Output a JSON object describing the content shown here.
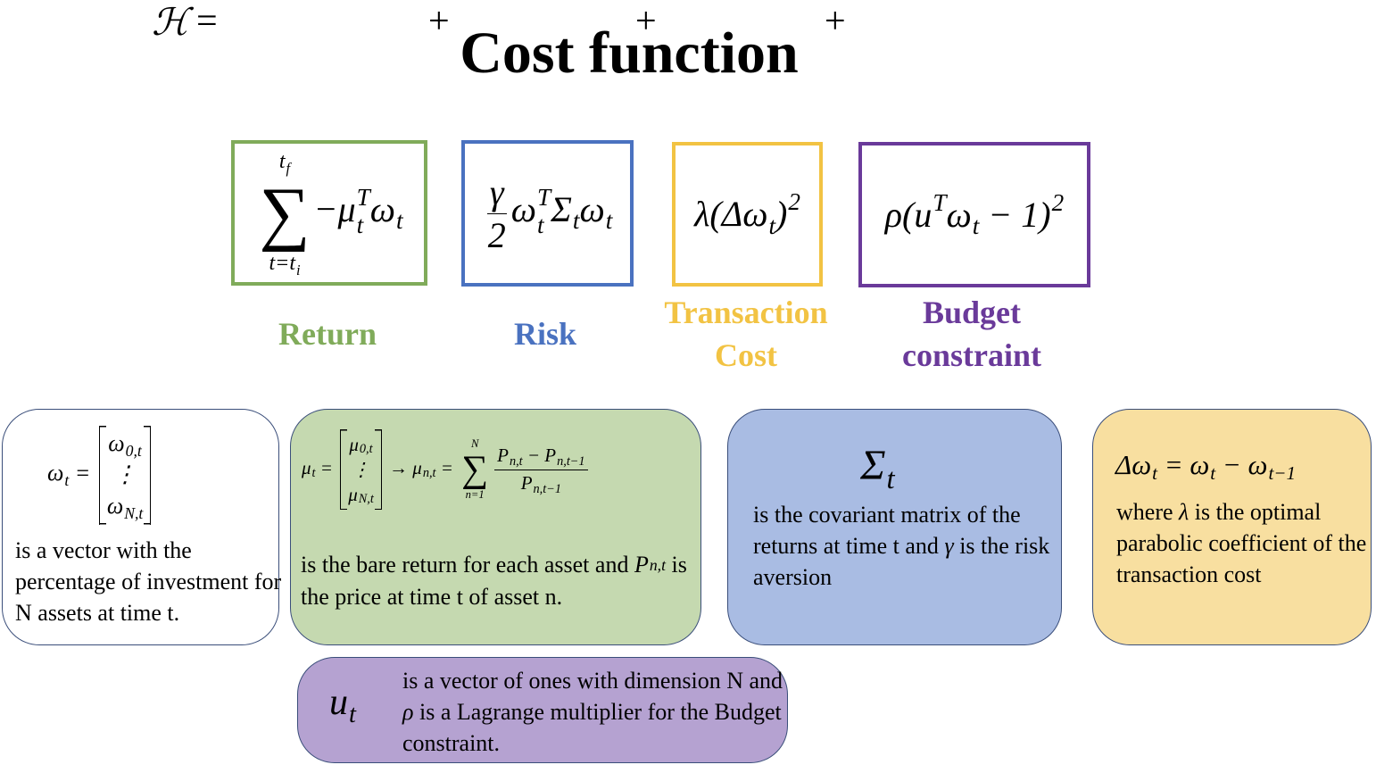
{
  "title": "Cost function",
  "equation": {
    "lhs": "ℋ",
    "eq": "=",
    "plus": "+",
    "terms": [
      {
        "formula": [
          {
            "op": "∑",
            "over": {
              "base": "t",
              "sub": "f"
            },
            "under": [
              "t=",
              {
                "base": "t",
                "sub": "i"
              }
            ]
          },
          "−",
          {
            "base": "μ",
            "sub": "t",
            "sup": "T"
          },
          {
            "base": "ω",
            "sub": "t"
          }
        ],
        "label": "Return",
        "color": "#80ab5a"
      },
      {
        "formula": [
          {
            "num": "γ",
            "den": "2"
          },
          {
            "base": "ω",
            "sub": "t",
            "sup": "T"
          },
          {
            "base": "Σ",
            "sub": "t"
          },
          {
            "base": "ω",
            "sub": "t"
          }
        ],
        "label": "Risk",
        "color": "#4a72c0"
      },
      {
        "formula": [
          "λ(Δ",
          {
            "base": "ω",
            "sub": "t"
          },
          {
            "base": ")",
            "sup": "2"
          }
        ],
        "label": "Transaction Cost",
        "color": "#f2c343"
      },
      {
        "formula": [
          "ρ(",
          {
            "base": "u",
            "sup": "T"
          },
          {
            "base": "ω",
            "sub": "t"
          },
          " − 1",
          {
            "base": ")",
            "sup": "2"
          }
        ],
        "label": "Budget constraint",
        "color": "#6a3a9a"
      }
    ]
  },
  "cards": [
    {
      "color": "#ffffff",
      "formula": [
        {
          "base": "ω",
          "sub": "t"
        },
        " = ",
        {
          "matrix": [
            [
              {
                "base": "ω",
                "sub": "0,t"
              }
            ],
            [
              "⋮"
            ],
            [
              {
                "base": "ω",
                "sub": "N,t"
              }
            ]
          ]
        }
      ],
      "text": [
        "is a vector with the percentage of investment for N assets at time t."
      ]
    },
    {
      "color": "#c5d9b0",
      "formula": [
        {
          "base": "μ",
          "sub": "t"
        },
        " = ",
        {
          "matrix": [
            [
              {
                "base": "μ",
                "sub": "0,t"
              }
            ],
            [
              "⋮"
            ],
            [
              {
                "base": "μ",
                "sub": "N,t"
              }
            ]
          ]
        },
        " → ",
        {
          "base": "μ",
          "sub": "n,t"
        },
        " = ",
        {
          "op": "∑",
          "over": "N",
          "under": "n=1"
        },
        {
          "num": [
            {
              "base": "P",
              "sub": "n,t"
            },
            " − ",
            {
              "base": "P",
              "sub": "n,t−1"
            }
          ],
          "den": {
            "base": "P",
            "sub": "n,t−1"
          }
        }
      ],
      "text": [
        "is the bare return for each asset and ",
        {
          "base": "P",
          "sub": "n,t"
        },
        " is the price at time t of asset n."
      ]
    },
    {
      "color": "#a9bce3",
      "formula": [
        {
          "base": "Σ",
          "sub": "t"
        }
      ],
      "text": [
        "is the covariant matrix of the returns at time t and ",
        {
          "base": "γ"
        },
        " is the risk aversion"
      ]
    },
    {
      "color": "#f8dfa0",
      "formula": [
        "Δ",
        {
          "base": "ω",
          "sub": "t"
        },
        " = ",
        {
          "base": "ω",
          "sub": "t"
        },
        " − ",
        {
          "base": "ω",
          "sub": "t−1"
        }
      ],
      "text": [
        "where ",
        {
          "base": "λ"
        },
        " is the optimal parabolic coefficient of the transaction cost"
      ]
    },
    {
      "color": "#b5a2d1",
      "formula": [
        {
          "base": "u",
          "sub": "t"
        }
      ],
      "text": [
        "is a vector of ones with dimension N and ",
        {
          "base": "ρ"
        },
        " is a Lagrange multiplier for the Budget constraint."
      ]
    }
  ]
}
